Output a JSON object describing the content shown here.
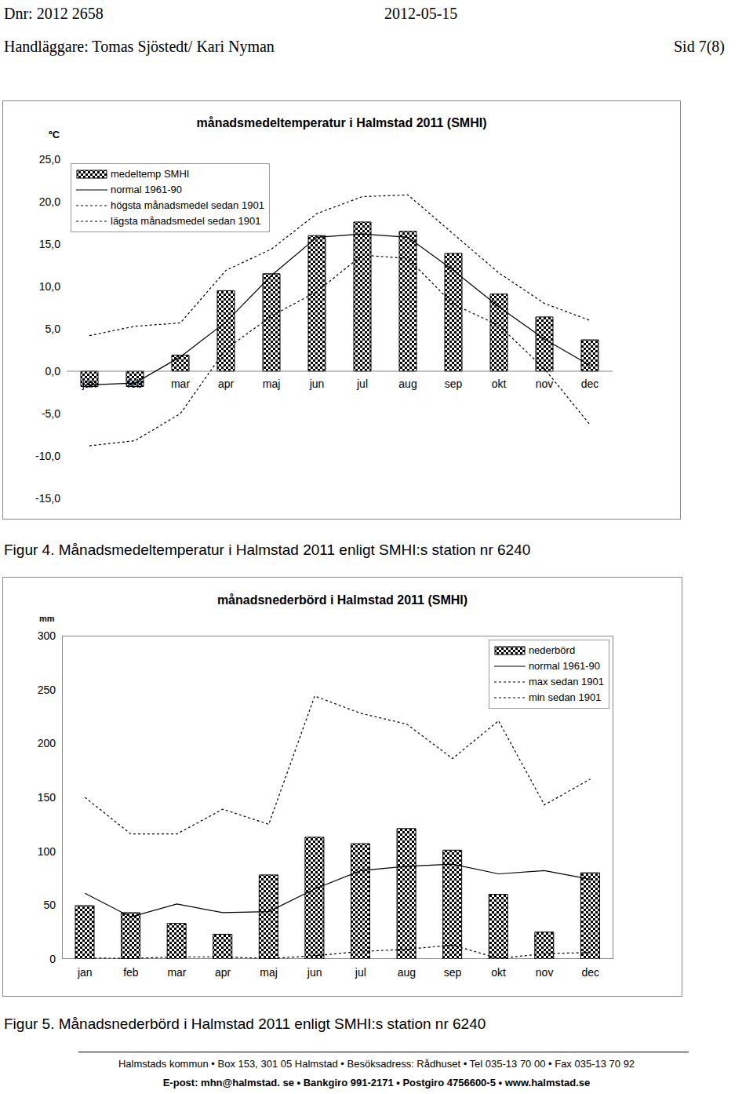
{
  "page": {
    "header": {
      "dnr": "Dnr: 2012 2658",
      "date": "2012-05-15",
      "handlaggare": "Handläggare: Tomas Sjöstedt/ Kari Nyman",
      "page": "Sid 7(8)"
    },
    "footer": [
      "Halmstads kommun • Box 153, 301 05 Halmstad • Besöksadress: Rådhuset • Tel 035-13 70 00 • Fax 035-13 70 92",
      "E-post: mhn@halmstad. se • Bankgiro 991-2171 • Postgiro 4756600-5 • www.halmstad.se"
    ]
  },
  "chart_data": [
    {
      "type": "bar",
      "title": "månadsmedeltemperatur i Halmstad 2011 (SMHI)",
      "caption": "Figur 4. Månadsmedeltemperatur i Halmstad 2011 enligt SMHI:s station nr 6240",
      "ylabel": "ºC",
      "categories": [
        "jan",
        "feb",
        "mar",
        "apr",
        "maj",
        "jun",
        "jul",
        "aug",
        "sep",
        "okt",
        "nov",
        "dec"
      ],
      "series": [
        {
          "name": "medeltemp SMHI",
          "type": "bar",
          "color": "#000000",
          "values": [
            -1.8,
            -1.8,
            1.9,
            9.5,
            11.5,
            16.0,
            17.6,
            16.5,
            13.9,
            9.1,
            6.4,
            3.7
          ]
        },
        {
          "name": "normal 1961-90",
          "type": "line",
          "color": "#000000",
          "line_style": "solid",
          "values": [
            -1.6,
            -1.4,
            1.7,
            5.8,
            11.3,
            15.8,
            16.2,
            15.8,
            11.9,
            7.6,
            3.8,
            0.7
          ]
        },
        {
          "name": "högsta månadsmedel sedan 1901",
          "type": "line",
          "color": "#000000",
          "line_style": "dotted",
          "values": [
            4.2,
            5.3,
            5.7,
            11.9,
            14.4,
            18.6,
            20.6,
            20.8,
            16.2,
            11.6,
            8.0,
            6.0
          ]
        },
        {
          "name": "lägsta månadsmedel sedan 1901",
          "type": "line",
          "color": "#000000",
          "line_style": "dotted",
          "values": [
            -8.8,
            -8.2,
            -5.0,
            2.6,
            6.5,
            9.4,
            13.7,
            13.3,
            7.9,
            5.4,
            0.3,
            -6.3
          ]
        }
      ],
      "ylim": [
        -15,
        25
      ],
      "yticks": [
        {
          "value": -15,
          "label": "-15,0"
        },
        {
          "value": -10,
          "label": "-10,0"
        },
        {
          "value": -5,
          "label": "-5,0"
        },
        {
          "value": 0,
          "label": "0,0"
        },
        {
          "value": 5,
          "label": "5,0"
        },
        {
          "value": 10,
          "label": "10,0"
        },
        {
          "value": 15,
          "label": "15,0"
        },
        {
          "value": 20,
          "label": "20,0"
        },
        {
          "value": 25,
          "label": "25,0"
        }
      ],
      "legend": "upper left"
    },
    {
      "type": "bar",
      "title": "månadsnederbörd i Halmstad 2011 (SMHI)",
      "caption": "Figur 5. Månadsnederbörd i Halmstad 2011 enligt SMHI:s station nr 6240",
      "ylabel": "mm",
      "categories": [
        "jan",
        "feb",
        "mar",
        "apr",
        "maj",
        "jun",
        "jul",
        "aug",
        "sep",
        "okt",
        "nov",
        "dec"
      ],
      "series": [
        {
          "name": "nederbörd",
          "type": "bar",
          "color": "#000000",
          "values": [
            49.5,
            43,
            33,
            23,
            78,
            113,
            107,
            121,
            101,
            60,
            25,
            80
          ]
        },
        {
          "name": "normal 1961-90",
          "type": "line",
          "color": "#000000",
          "line_style": "solid",
          "values": [
            61,
            39,
            51,
            43,
            44,
            65,
            82,
            86,
            88,
            79,
            82,
            74
          ]
        },
        {
          "name": "max sedan 1901",
          "type": "line",
          "color": "#000000",
          "line_style": "dotted",
          "values": [
            150,
            116,
            116,
            139,
            125,
            244,
            228,
            218,
            186,
            221,
            143,
            167
          ]
        },
        {
          "name": "min sedan 1901",
          "type": "line",
          "color": "#000000",
          "line_style": "dotted",
          "values": [
            1,
            0.5,
            2,
            2,
            0.5,
            3,
            7,
            9,
            13,
            0.5,
            5,
            6
          ]
        }
      ],
      "ylim": [
        0,
        300
      ],
      "yticks": [
        0,
        50,
        100,
        150,
        200,
        250,
        300
      ],
      "legend": "upper right"
    }
  ]
}
